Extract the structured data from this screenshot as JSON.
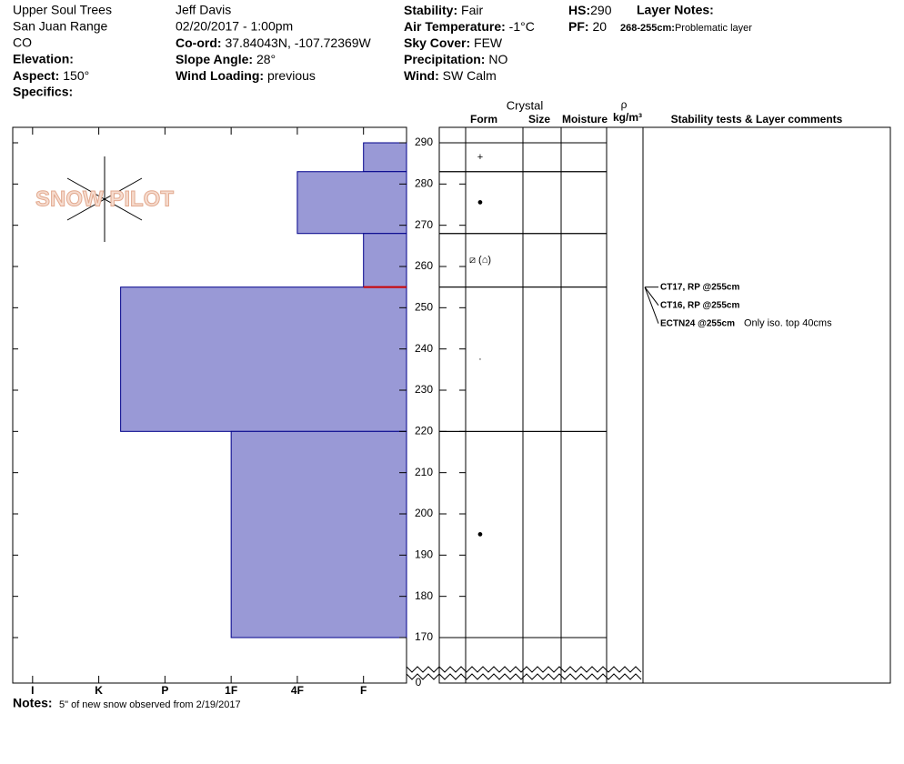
{
  "header": {
    "location": "Upper Soul Trees",
    "range": "San Juan Range",
    "state": "CO",
    "elevation_label": "Elevation:",
    "aspect_label": "Aspect:",
    "aspect": "150°",
    "specifics_label": "Specifics:",
    "observer": "Jeff Davis",
    "datetime": "02/20/2017 - 1:00pm",
    "coord_label": "Co-ord:",
    "coord": "37.84043N, -107.72369W",
    "slope_label": "Slope Angle:",
    "slope": "28°",
    "wind_loading_label": "Wind Loading:",
    "wind_loading": "previous",
    "stability_label": "Stability:",
    "stability": "Fair",
    "air_temp_label": "Air Temperature:",
    "air_temp": "-1°C",
    "sky_label": "Sky Cover:",
    "sky": "FEW",
    "precip_label": "Precipitation:",
    "precip": "NO",
    "wind_label": "Wind:",
    "wind": "SW Calm",
    "hs_label": "HS:",
    "hs": 290,
    "pf_label": "PF:",
    "pf": 20,
    "layer_notes_label": "Layer Notes:",
    "layer_note_range": "268-255cm:",
    "layer_note": "Problematic layer"
  },
  "logo": "SNOW PILOT",
  "columns": {
    "crystal": "Crystal",
    "form": "Form",
    "size": "Size",
    "moisture": "Moisture",
    "rho": "ρ",
    "density_unit": "kg/m³",
    "comments": "Stability tests & Layer comments"
  },
  "hardness_lim": [
    6.3,
    0.35
  ],
  "hardness_ticks": [
    {
      "value": 6,
      "label": "I"
    },
    {
      "value": 5,
      "label": "K"
    },
    {
      "value": 4,
      "label": "P"
    },
    {
      "value": 3,
      "label": "1F"
    },
    {
      "value": 2,
      "label": "4F"
    },
    {
      "value": 1,
      "label": "F"
    }
  ],
  "depth_lim": [
    162.5,
    293.75
  ],
  "depth_ticks": [
    170,
    180,
    190,
    200,
    210,
    220,
    230,
    240,
    250,
    260,
    270,
    280,
    290
  ],
  "depth_floor": 0,
  "layers": [
    {
      "top": 290,
      "bottom": 283,
      "hardness": 1,
      "form": "+"
    },
    {
      "top": 283,
      "bottom": 268,
      "hardness": 2,
      "form": "●"
    },
    {
      "top": 268,
      "bottom": 255,
      "hardness": 1,
      "form": "⧄ (⌂)"
    },
    {
      "top": 255,
      "bottom": 220,
      "hardness": 4.67,
      "form": "·"
    },
    {
      "top": 220,
      "bottom": 170,
      "hardness": 3,
      "form": "●"
    }
  ],
  "layer_color": "#9999d6",
  "stability_tests": [
    {
      "label": "CT17, RP @255cm",
      "depth": 255
    },
    {
      "label": "CT16, RP @255cm",
      "depth": 255
    },
    {
      "label": "ECTN24 @255cm",
      "depth": 255,
      "comment": "Only iso. top 40cms"
    }
  ],
  "notes_label": "Notes:",
  "notes": "5\" of new snow observed from 2/19/2017"
}
